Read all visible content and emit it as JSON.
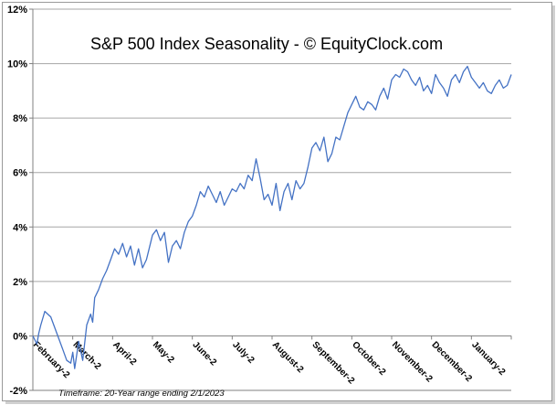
{
  "chart_data": {
    "type": "line",
    "title": "S&P 500 Index Seasonality - © EquityClock.com",
    "footnote": "Timeframe: 20-Year range ending 2/1/2023",
    "xlabel": "",
    "ylabel": "",
    "ylim": [
      -2,
      12
    ],
    "yticks": [
      "12%",
      "10%",
      "8%",
      "6%",
      "4%",
      "2%",
      "0%",
      "-2%"
    ],
    "grid": "horizontal",
    "line_color": "#4472C4",
    "categories": [
      "February-2",
      "March-2",
      "April-2",
      "May-2",
      "June-2",
      "July-2",
      "August-2",
      "September-2",
      "October-2",
      "November-2",
      "December-2",
      "January-2"
    ],
    "series": [
      {
        "name": "S&P 500 Seasonality",
        "x": [
          0,
          0.1,
          0.15,
          0.2,
          0.3,
          0.45,
          0.55,
          0.65,
          0.75,
          0.85,
          0.95,
          1.0,
          1.05,
          1.15,
          1.25,
          1.35,
          1.45,
          1.5,
          1.55,
          1.65,
          1.75,
          1.85,
          1.95,
          2.05,
          2.15,
          2.25,
          2.35,
          2.45,
          2.55,
          2.65,
          2.75,
          2.85,
          2.95,
          3.0,
          3.1,
          3.2,
          3.3,
          3.4,
          3.5,
          3.6,
          3.7,
          3.8,
          3.9,
          4.0,
          4.1,
          4.2,
          4.3,
          4.4,
          4.5,
          4.6,
          4.7,
          4.8,
          4.9,
          5.0,
          5.1,
          5.2,
          5.3,
          5.4,
          5.5,
          5.6,
          5.7,
          5.8,
          5.9,
          6.0,
          6.1,
          6.2,
          6.3,
          6.4,
          6.5,
          6.6,
          6.7,
          6.8,
          6.9,
          7.0,
          7.1,
          7.2,
          7.3,
          7.4,
          7.5,
          7.6,
          7.7,
          7.8,
          7.9,
          8.0,
          8.1,
          8.2,
          8.3,
          8.4,
          8.5,
          8.6,
          8.7,
          8.8,
          8.9,
          9.0,
          9.1,
          9.2,
          9.3,
          9.4,
          9.5,
          9.6,
          9.7,
          9.8,
          9.9,
          10.0,
          10.1,
          10.2,
          10.3,
          10.4,
          10.5,
          10.6,
          10.7,
          10.8,
          10.9,
          11.0,
          11.1,
          11.2,
          11.3,
          11.4,
          11.5,
          11.6,
          11.7,
          11.8,
          11.9,
          12.0
        ],
        "values": [
          0.0,
          -0.3,
          0.1,
          0.4,
          0.9,
          0.7,
          0.3,
          -0.1,
          -0.5,
          -0.9,
          -1.0,
          -0.6,
          -1.2,
          -0.2,
          -0.9,
          0.4,
          0.8,
          0.5,
          1.4,
          1.7,
          2.1,
          2.4,
          2.8,
          3.2,
          3.0,
          3.4,
          2.9,
          3.3,
          2.6,
          3.2,
          2.5,
          2.8,
          3.4,
          3.7,
          3.9,
          3.5,
          3.8,
          2.7,
          3.3,
          3.5,
          3.2,
          3.8,
          4.2,
          4.4,
          4.8,
          5.3,
          5.1,
          5.5,
          5.2,
          4.9,
          5.3,
          4.8,
          5.1,
          5.4,
          5.3,
          5.6,
          5.4,
          5.9,
          5.7,
          6.5,
          5.8,
          5.0,
          5.2,
          4.8,
          5.6,
          4.6,
          5.3,
          5.6,
          5.0,
          5.7,
          5.4,
          5.6,
          6.2,
          6.9,
          7.1,
          6.8,
          7.3,
          6.4,
          6.7,
          7.3,
          7.2,
          7.7,
          8.2,
          8.5,
          8.8,
          8.4,
          8.3,
          8.6,
          8.5,
          8.3,
          8.8,
          9.1,
          8.7,
          9.4,
          9.6,
          9.5,
          9.8,
          9.7,
          9.4,
          9.2,
          9.5,
          9.0,
          9.2,
          8.9,
          9.6,
          9.3,
          9.1,
          8.8,
          9.4,
          9.6,
          9.3,
          9.7,
          9.9,
          9.5,
          9.3,
          9.1,
          9.3,
          9.0,
          8.9,
          9.2,
          9.4,
          9.1,
          9.2,
          9.6
        ]
      }
    ]
  }
}
